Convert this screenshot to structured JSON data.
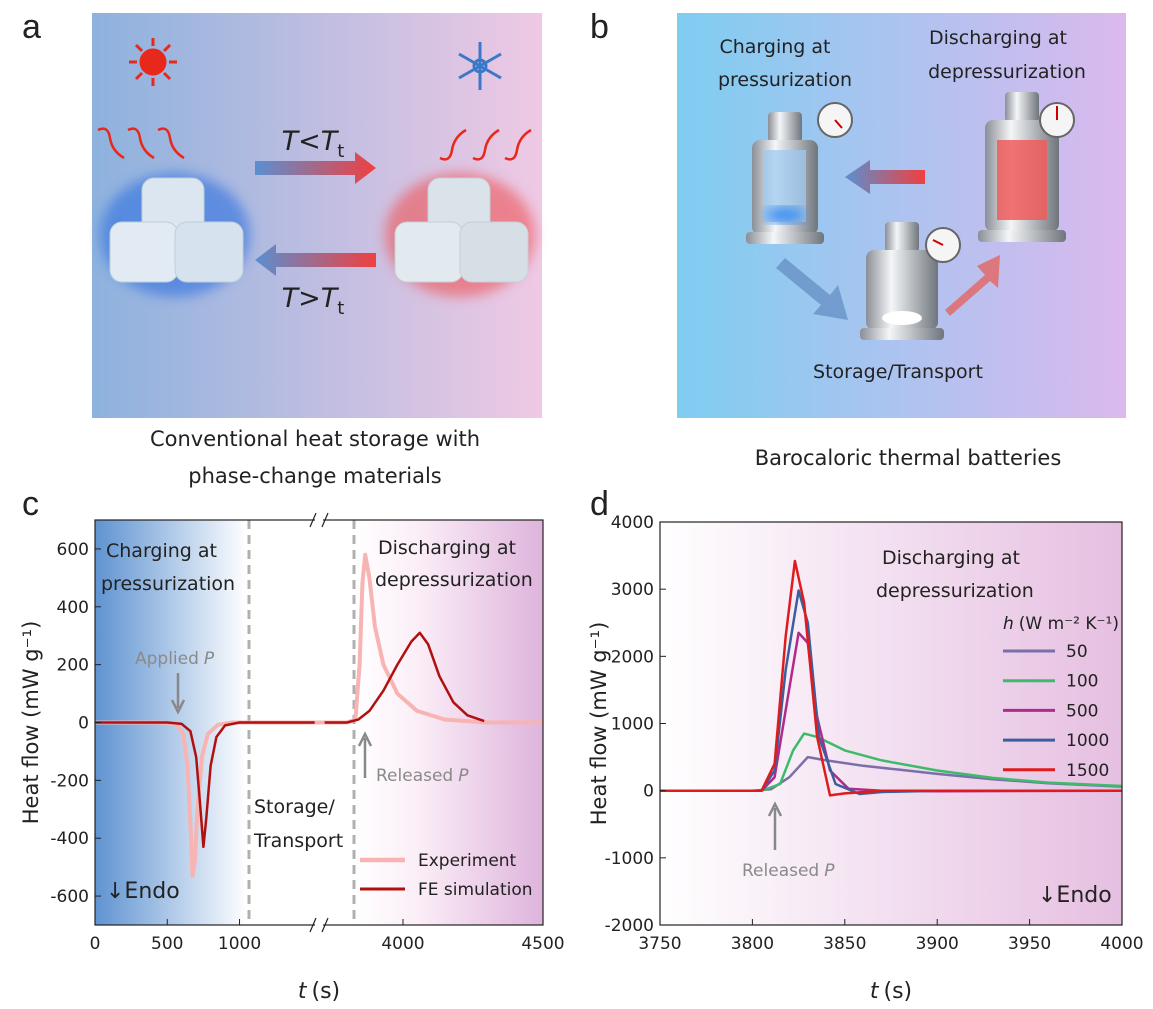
{
  "panels": {
    "a": {
      "letter": "a",
      "forward": {
        "var": "T",
        "op": "<",
        "var2": "T",
        "sub": "t"
      },
      "backward": {
        "var": "T",
        "op": ">",
        "var2": "T",
        "sub": "t"
      },
      "caption": [
        "Conventional heat storage with",
        "phase-change materials"
      ]
    },
    "b": {
      "letter": "b",
      "charging": [
        "Charging at",
        "pressurization"
      ],
      "discharging": [
        "Discharging at",
        "depressurization"
      ],
      "storage": "Storage/Transport",
      "caption": "Barocaloric thermal batteries"
    }
  },
  "chart_data": [
    {
      "type": "line",
      "letter": "c",
      "ylabel": "Heat flow (mW g⁻¹)",
      "xlabel": {
        "var": "t",
        "unit": "(s)"
      },
      "xlim": [
        0,
        4500
      ],
      "x_break": [
        1550,
        3700
      ],
      "xticks": [
        0,
        500,
        1000,
        4000,
        4500
      ],
      "ylim": [
        -700,
        700
      ],
      "yticks": [
        -600,
        -400,
        -200,
        0,
        200,
        400,
        600
      ],
      "series": [
        {
          "name": "Experiment",
          "color": "#f8b4b2",
          "x": [
            0,
            450,
            560,
            610,
            640,
            660,
            675,
            690,
            710,
            740,
            780,
            850,
            950,
            1550,
            3700,
            3800,
            3830,
            3845,
            3855,
            3865,
            3880,
            3900,
            3930,
            3980,
            4050,
            4150,
            4300,
            4500
          ],
          "values": [
            0,
            0,
            -5,
            -40,
            -150,
            -350,
            -530,
            -480,
            -300,
            -120,
            -40,
            -8,
            0,
            0,
            0,
            0,
            10,
            200,
            480,
            580,
            500,
            330,
            200,
            100,
            40,
            10,
            0,
            0
          ]
        },
        {
          "name": "FE simulation",
          "color": "#b01010",
          "x": [
            0,
            500,
            600,
            660,
            700,
            730,
            750,
            770,
            800,
            840,
            900,
            1000,
            1520,
            3720,
            3800,
            3840,
            3880,
            3930,
            3980,
            4030,
            4060,
            4090,
            4130,
            4180,
            4230,
            4290
          ],
          "values": [
            0,
            0,
            -5,
            -30,
            -120,
            -300,
            -430,
            -330,
            -150,
            -50,
            -10,
            0,
            0,
            0,
            0,
            10,
            40,
            110,
            200,
            280,
            310,
            270,
            160,
            70,
            25,
            5
          ]
        }
      ],
      "annotations": {
        "charging": [
          "Charging at",
          "pressurization"
        ],
        "applied": {
          "text": "Applied",
          "var": "P"
        },
        "storage": [
          "Storage/",
          "Transport"
        ],
        "discharging": [
          "Discharging at",
          "depressurization"
        ],
        "released": {
          "text": "Released",
          "var": "P"
        },
        "endo": "↓Endo"
      }
    },
    {
      "type": "line",
      "letter": "d",
      "ylabel": "Heat flow (mW g⁻¹)",
      "xlabel": {
        "var": "t",
        "unit": "(s)"
      },
      "xlim": [
        3750,
        4000
      ],
      "xticks": [
        3750,
        3800,
        3850,
        3900,
        3950,
        4000
      ],
      "ylim": [
        -2000,
        4000
      ],
      "yticks": [
        -2000,
        -1000,
        0,
        1000,
        2000,
        3000,
        4000
      ],
      "legend_title": {
        "var": "h",
        "unit": "(W m⁻² K⁻¹)"
      },
      "series": [
        {
          "name": "50",
          "color": "#7a6fa8",
          "x": [
            3750,
            3800,
            3810,
            3820,
            3830,
            3840,
            3860,
            3880,
            3900,
            3930,
            3960,
            4000
          ],
          "values": [
            0,
            0,
            20,
            200,
            500,
            450,
            370,
            310,
            250,
            170,
            110,
            60
          ]
        },
        {
          "name": "100",
          "color": "#3dbb6a",
          "x": [
            3750,
            3805,
            3815,
            3822,
            3828,
            3835,
            3850,
            3870,
            3900,
            3930,
            3960,
            4000
          ],
          "values": [
            0,
            0,
            100,
            600,
            850,
            800,
            600,
            450,
            300,
            190,
            120,
            70
          ]
        },
        {
          "name": "500",
          "color": "#b02a8a",
          "x": [
            3750,
            3805,
            3812,
            3818,
            3825,
            3830,
            3835,
            3842,
            3852,
            3870,
            3900,
            4000
          ],
          "values": [
            0,
            0,
            200,
            1200,
            2350,
            2200,
            1100,
            300,
            30,
            0,
            -10,
            0
          ]
        },
        {
          "name": "1000",
          "color": "#3a5f9f",
          "x": [
            3750,
            3805,
            3812,
            3818,
            3825,
            3830,
            3836,
            3845,
            3858,
            3870,
            3900,
            4000
          ],
          "values": [
            0,
            0,
            300,
            1800,
            2980,
            2500,
            800,
            100,
            -50,
            -20,
            0,
            0
          ]
        },
        {
          "name": "1500",
          "color": "#e01b1b",
          "x": [
            3750,
            3805,
            3812,
            3818,
            3823,
            3828,
            3835,
            3842,
            3850,
            3870,
            4000
          ],
          "values": [
            0,
            0,
            400,
            2300,
            3420,
            2800,
            800,
            -70,
            -40,
            0,
            0
          ]
        }
      ],
      "annotations": {
        "discharging": [
          "Discharging at",
          "depressurization"
        ],
        "released": {
          "text": "Released",
          "var": "P"
        },
        "endo": "↓Endo"
      }
    }
  ]
}
